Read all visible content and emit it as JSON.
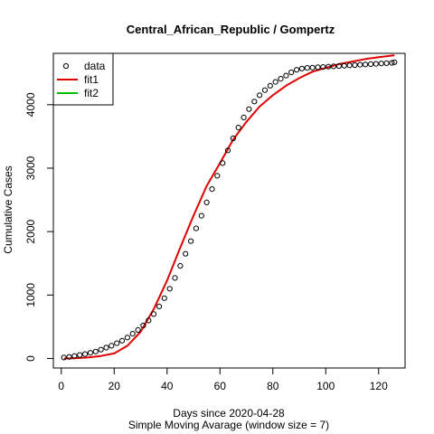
{
  "chart_data": {
    "type": "scatter",
    "title": "Central_African_Republic / Gompertz",
    "xlabel": "Days since 2020-04-28",
    "xlabel_sub": "Simple Moving Avarage (window size = 7)",
    "ylabel": "Cumulative Cases",
    "xlim": [
      -3,
      130
    ],
    "ylim": [
      -150,
      4810
    ],
    "x_ticks": [
      0,
      20,
      40,
      60,
      80,
      100,
      120
    ],
    "y_ticks": [
      0,
      1000,
      2000,
      3000,
      4000
    ],
    "legend_position": "top-left",
    "legend": [
      {
        "label": "data",
        "type": "point",
        "color": "#000000"
      },
      {
        "label": "fit1",
        "type": "line",
        "color": "#e00000"
      },
      {
        "label": "fit2",
        "type": "line",
        "color": "#00c000"
      }
    ],
    "series": [
      {
        "name": "data",
        "type": "points",
        "color": "#000000",
        "x": [
          1,
          3,
          5,
          7,
          9,
          11,
          13,
          15,
          17,
          19,
          21,
          23,
          25,
          27,
          29,
          31,
          33,
          35,
          37,
          39,
          41,
          43,
          45,
          47,
          49,
          51,
          53,
          55,
          57,
          59,
          61,
          63,
          65,
          67,
          69,
          71,
          73,
          75,
          77,
          79,
          81,
          83,
          85,
          87,
          89,
          91,
          93,
          95,
          97,
          99,
          101,
          103,
          105,
          107,
          109,
          111,
          113,
          115,
          117,
          119,
          121,
          123,
          125,
          126
        ],
        "y": [
          15,
          25,
          40,
          55,
          70,
          90,
          110,
          140,
          170,
          200,
          240,
          280,
          330,
          390,
          450,
          520,
          600,
          700,
          820,
          950,
          1100,
          1270,
          1460,
          1650,
          1850,
          2050,
          2250,
          2460,
          2670,
          2880,
          3080,
          3280,
          3470,
          3640,
          3800,
          3930,
          4050,
          4150,
          4230,
          4300,
          4360,
          4410,
          4460,
          4510,
          4550,
          4570,
          4580,
          4585,
          4590,
          4595,
          4600,
          4605,
          4610,
          4615,
          4620,
          4625,
          4630,
          4635,
          4640,
          4645,
          4650,
          4655,
          4660,
          4670
        ]
      },
      {
        "name": "fit1",
        "type": "line",
        "color": "#e00000",
        "x": [
          1,
          5,
          10,
          15,
          20,
          25,
          30,
          35,
          40,
          45,
          50,
          55,
          60,
          65,
          70,
          75,
          80,
          85,
          90,
          95,
          100,
          105,
          110,
          115,
          120,
          126
        ],
        "y": [
          0,
          3,
          15,
          40,
          80,
          200,
          420,
          780,
          1230,
          1750,
          2250,
          2720,
          3080,
          3450,
          3730,
          3970,
          4150,
          4300,
          4420,
          4520,
          4580,
          4640,
          4680,
          4720,
          4750,
          4780
        ]
      },
      {
        "name": "fit2",
        "type": "line",
        "color": "#00c000",
        "x": [],
        "y": []
      }
    ]
  }
}
